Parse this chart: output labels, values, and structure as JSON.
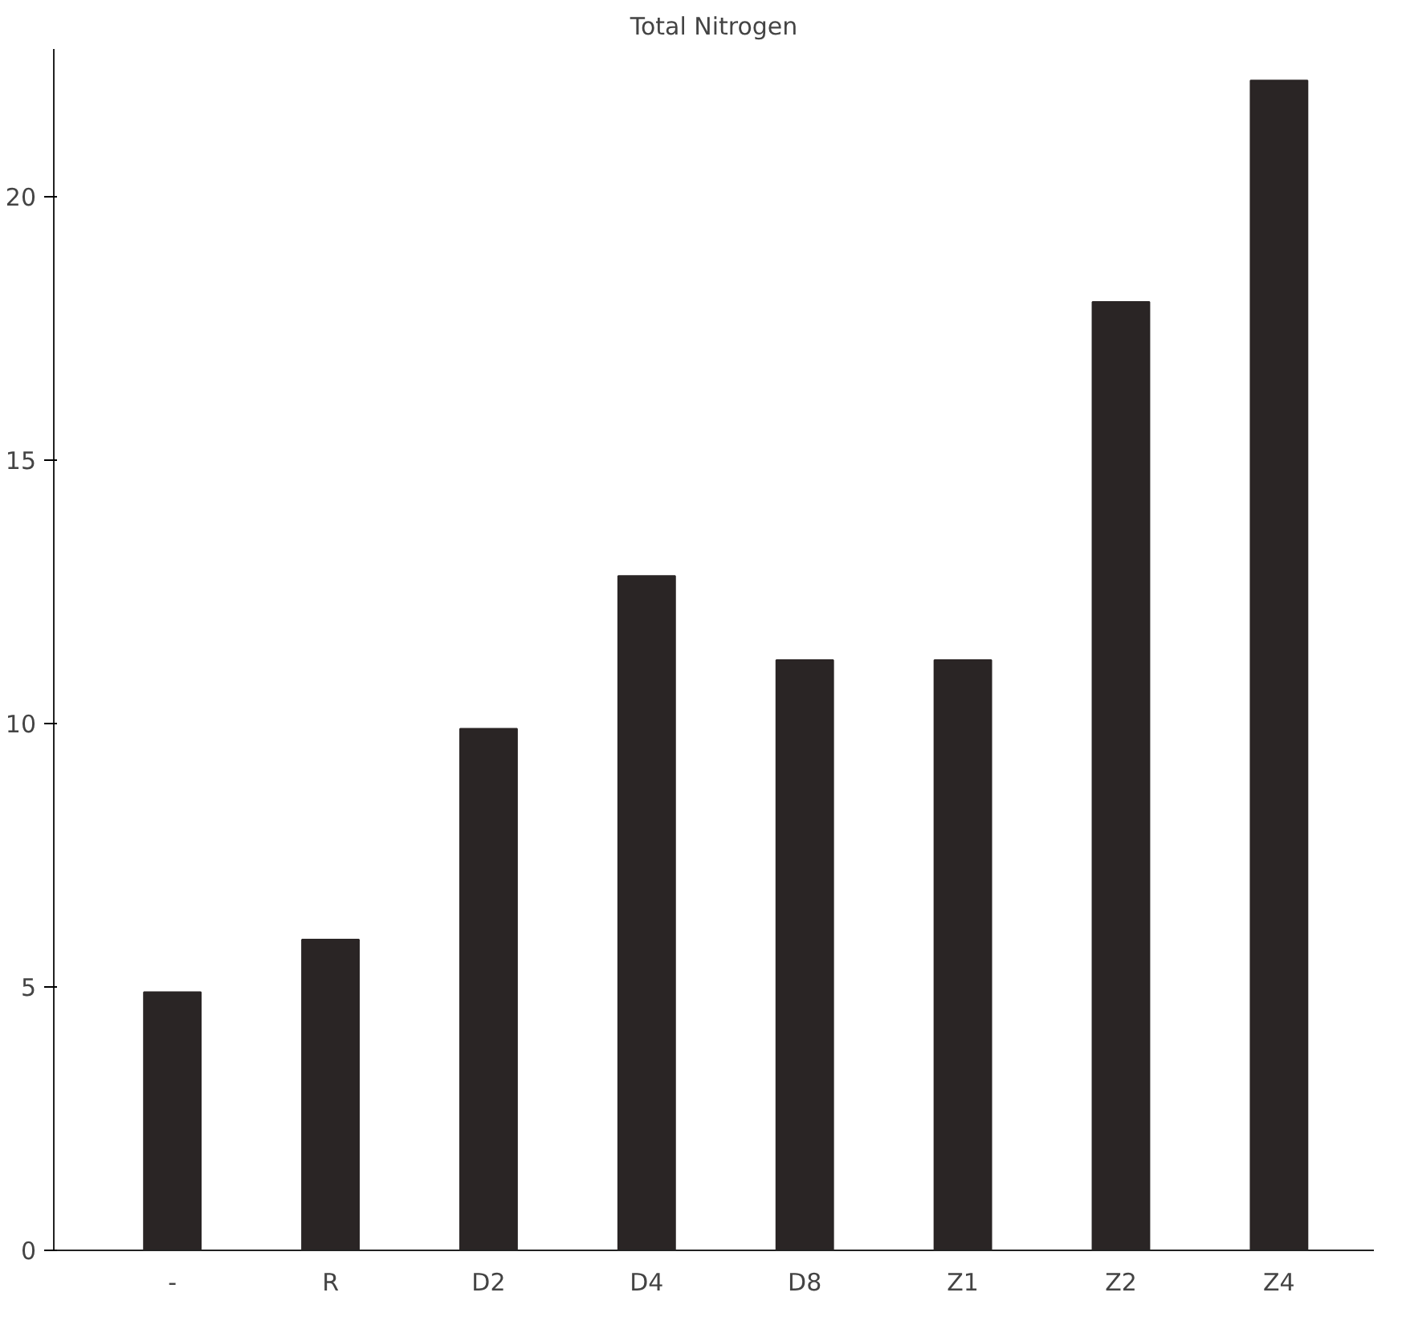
{
  "chart_data": {
    "type": "bar",
    "title": "Total Nitrogen",
    "categories": [
      "-",
      "R",
      "D2",
      "D4",
      "D8",
      "Z1",
      "Z2",
      "Z4"
    ],
    "values": [
      4.9,
      5.9,
      9.9,
      12.8,
      11.2,
      11.2,
      18.0,
      22.2
    ],
    "color": "#2a2525",
    "ylim": [
      0,
      22.8
    ],
    "yticks": [
      0,
      5,
      10,
      15,
      20
    ],
    "grid": false
  }
}
